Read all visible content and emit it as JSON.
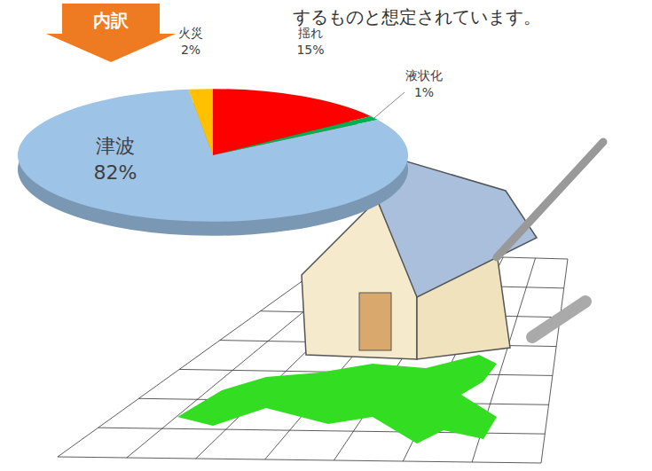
{
  "chart_data": {
    "type": "pie",
    "title": "内訳",
    "subtitle": "するものと想定されています。",
    "categories": [
      "揺れ",
      "液状化",
      "津波",
      "火災"
    ],
    "values": [
      15,
      1,
      82,
      2
    ],
    "value_labels": [
      "15%",
      "1%",
      "82%",
      "2%"
    ],
    "colors": [
      "#ff0000",
      "#00b050",
      "#9dc3e6",
      "#ffc000"
    ],
    "data_labels": true
  }
}
